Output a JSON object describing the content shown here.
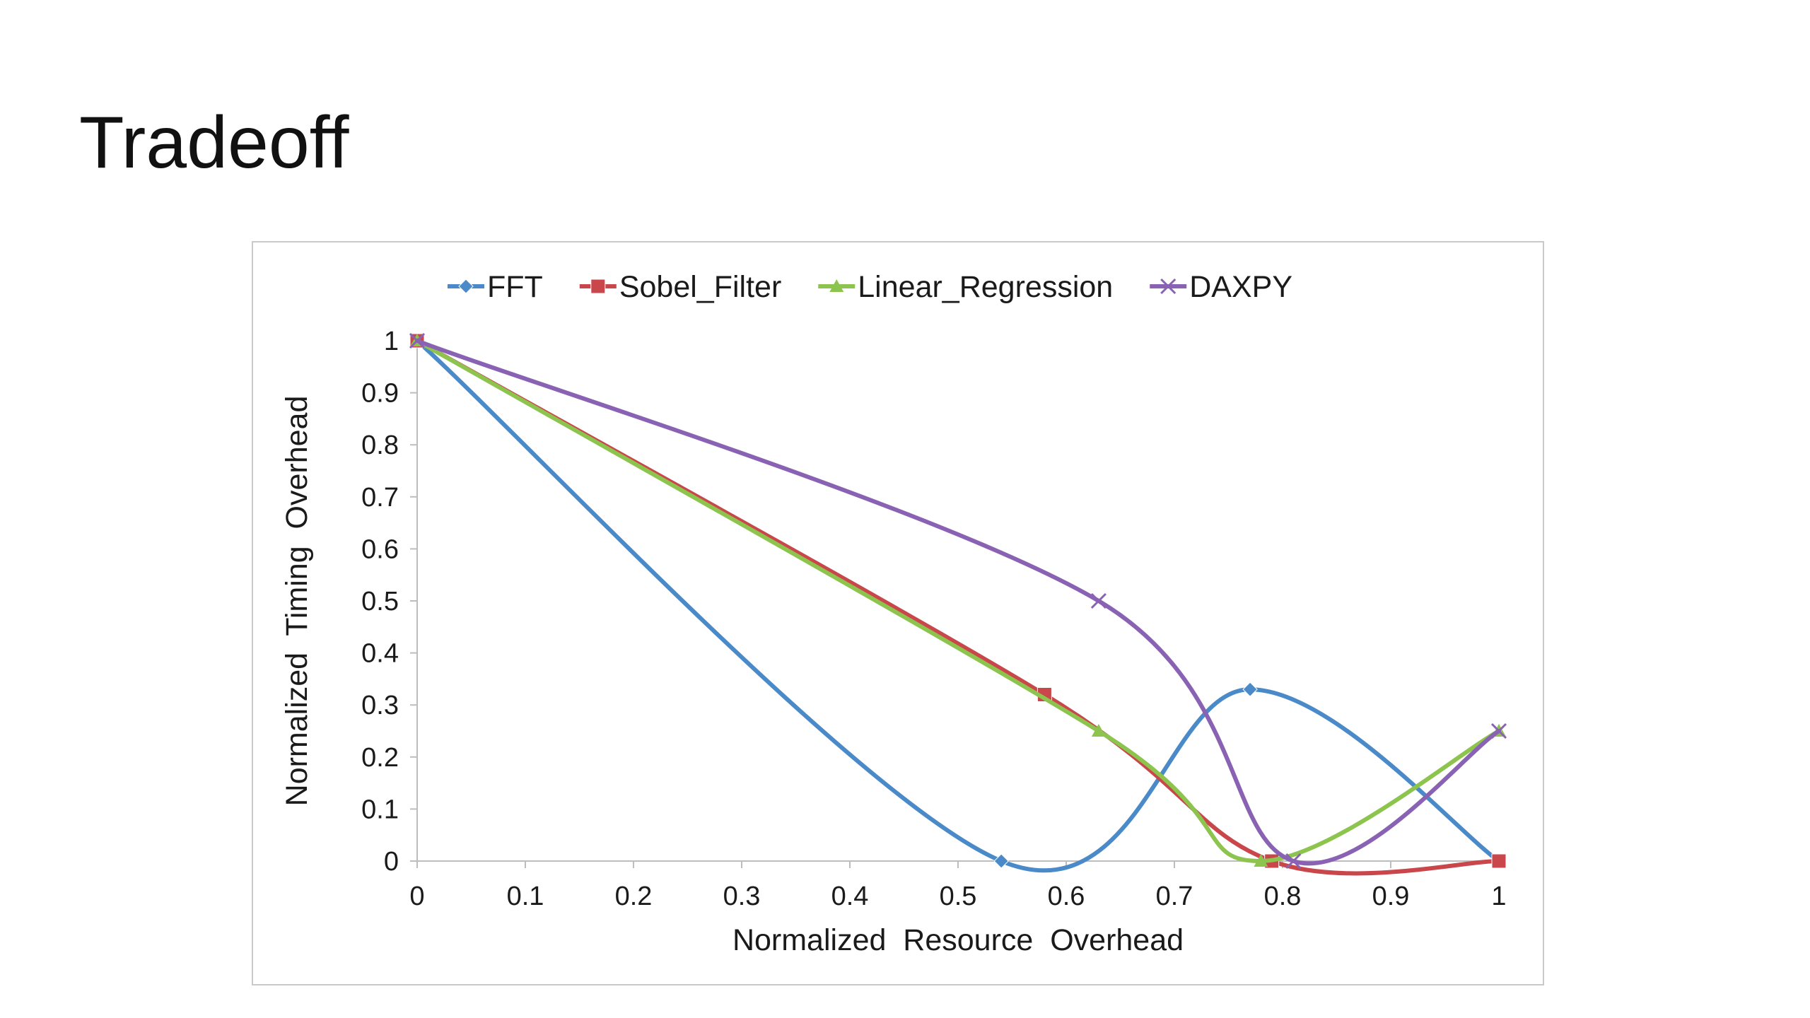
{
  "slide": {
    "title": "Tradeoff"
  },
  "chart_data": {
    "type": "line",
    "title": "",
    "xlabel": "Normalized  Resource  Overhead",
    "ylabel": "Normalized  Timing  Overhead",
    "xlim": [
      0,
      1
    ],
    "ylim": [
      0,
      1
    ],
    "x_ticks": [
      "0",
      "0.1",
      "0.2",
      "0.3",
      "0.4",
      "0.5",
      "0.6",
      "0.7",
      "0.8",
      "0.9",
      "1"
    ],
    "y_ticks": [
      "0",
      "0.1",
      "0.2",
      "0.3",
      "0.4",
      "0.5",
      "0.6",
      "0.7",
      "0.8",
      "0.9",
      "1"
    ],
    "grid": false,
    "smooth": true,
    "legend_position": "top",
    "series": [
      {
        "name": "FFT",
        "color": "#4a8ac9",
        "marker": "diamond",
        "points": [
          [
            0,
            1
          ],
          [
            0.54,
            0
          ],
          [
            0.77,
            0.33
          ],
          [
            1,
            0
          ]
        ]
      },
      {
        "name": "Sobel_Filter",
        "color": "#c9464a",
        "marker": "square",
        "points": [
          [
            0,
            1
          ],
          [
            0.58,
            0.32
          ],
          [
            0.79,
            0
          ],
          [
            1,
            0
          ]
        ]
      },
      {
        "name": "Linear_Regression",
        "color": "#8dc44e",
        "marker": "triangle",
        "points": [
          [
            0,
            1
          ],
          [
            0.63,
            0.25
          ],
          [
            0.78,
            0
          ],
          [
            1,
            0.25
          ]
        ]
      },
      {
        "name": "DAXPY",
        "color": "#8a62b3",
        "marker": "x",
        "points": [
          [
            0,
            1
          ],
          [
            0.63,
            0.5
          ],
          [
            0.81,
            0
          ],
          [
            1,
            0.25
          ]
        ]
      }
    ]
  }
}
